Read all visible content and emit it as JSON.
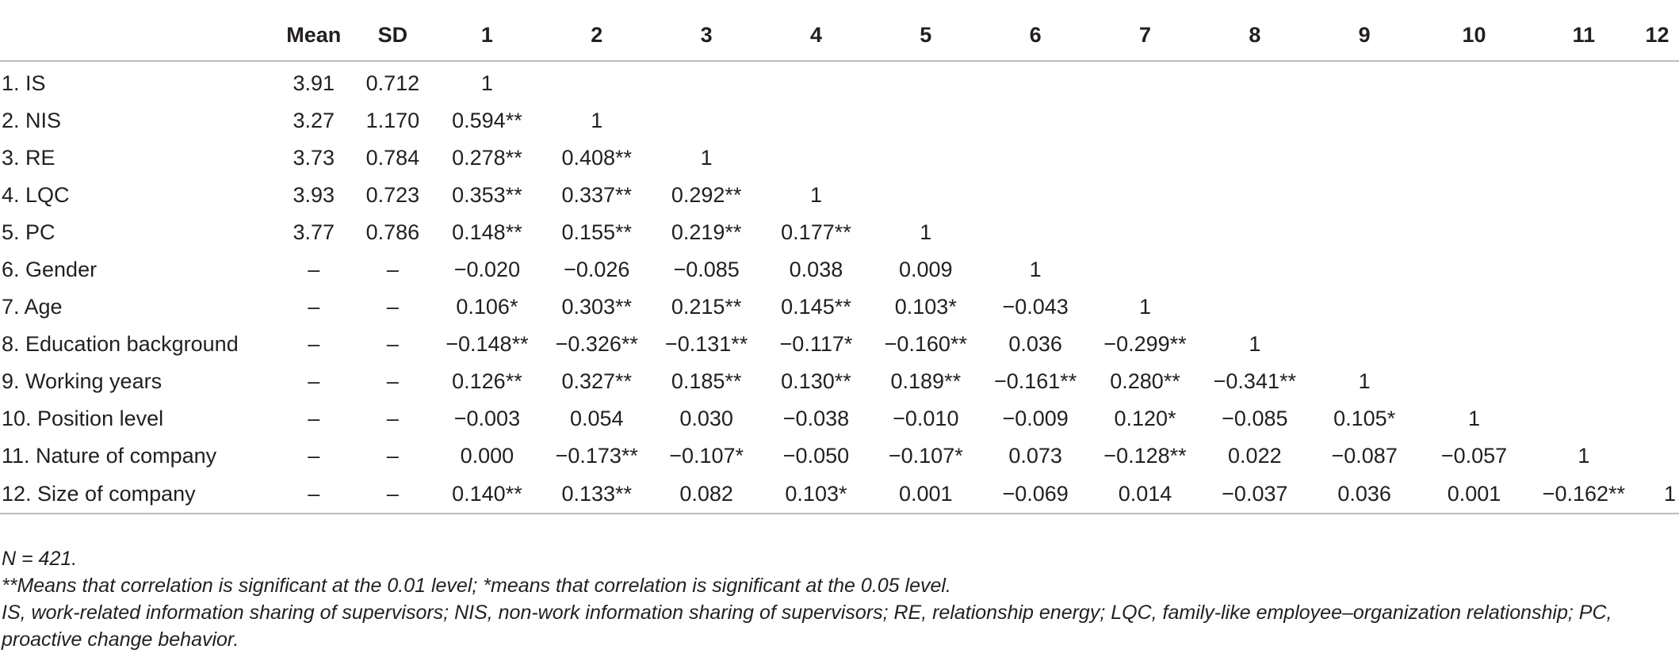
{
  "table": {
    "headers": [
      "",
      "Mean",
      "SD",
      "1",
      "2",
      "3",
      "4",
      "5",
      "6",
      "7",
      "8",
      "9",
      "10",
      "11",
      "12"
    ],
    "rows": [
      {
        "label": "1. IS",
        "mean": "3.91",
        "sd": "0.712",
        "values": [
          "1",
          "",
          "",
          "",
          "",
          "",
          "",
          "",
          "",
          "",
          "",
          ""
        ]
      },
      {
        "label": "2. NIS",
        "mean": "3.27",
        "sd": "1.170",
        "values": [
          "0.594**",
          "1",
          "",
          "",
          "",
          "",
          "",
          "",
          "",
          "",
          "",
          ""
        ]
      },
      {
        "label": "3. RE",
        "mean": "3.73",
        "sd": "0.784",
        "values": [
          "0.278**",
          "0.408**",
          "1",
          "",
          "",
          "",
          "",
          "",
          "",
          "",
          "",
          ""
        ]
      },
      {
        "label": "4. LQC",
        "mean": "3.93",
        "sd": "0.723",
        "values": [
          "0.353**",
          "0.337**",
          "0.292**",
          "1",
          "",
          "",
          "",
          "",
          "",
          "",
          "",
          ""
        ]
      },
      {
        "label": "5. PC",
        "mean": "3.77",
        "sd": "0.786",
        "values": [
          "0.148**",
          "0.155**",
          "0.219**",
          "0.177**",
          "1",
          "",
          "",
          "",
          "",
          "",
          "",
          ""
        ]
      },
      {
        "label": "6. Gender",
        "mean": "–",
        "sd": "–",
        "values": [
          "−0.020",
          "−0.026",
          "−0.085",
          "0.038",
          "0.009",
          "1",
          "",
          "",
          "",
          "",
          "",
          ""
        ]
      },
      {
        "label": "7. Age",
        "mean": "–",
        "sd": "–",
        "values": [
          "0.106*",
          "0.303**",
          "0.215**",
          "0.145**",
          "0.103*",
          "−0.043",
          "1",
          "",
          "",
          "",
          "",
          ""
        ]
      },
      {
        "label": "8. Education background",
        "mean": "–",
        "sd": "–",
        "values": [
          "−0.148**",
          "−0.326**",
          "−0.131**",
          "−0.117*",
          "−0.160**",
          "0.036",
          "−0.299**",
          "1",
          "",
          "",
          "",
          ""
        ]
      },
      {
        "label": "9. Working years",
        "mean": "–",
        "sd": "–",
        "values": [
          "0.126**",
          "0.327**",
          "0.185**",
          "0.130**",
          "0.189**",
          "−0.161**",
          "0.280**",
          "−0.341**",
          "1",
          "",
          "",
          ""
        ]
      },
      {
        "label": "10. Position level",
        "mean": "–",
        "sd": "–",
        "values": [
          "−0.003",
          "0.054",
          "0.030",
          "−0.038",
          "−0.010",
          "−0.009",
          "0.120*",
          "−0.085",
          "0.105*",
          "1",
          "",
          ""
        ]
      },
      {
        "label": "11. Nature of company",
        "mean": "–",
        "sd": "–",
        "values": [
          "0.000",
          "−0.173**",
          "−0.107*",
          "−0.050",
          "−0.107*",
          "0.073",
          "−0.128**",
          "0.022",
          "−0.087",
          "−0.057",
          "1",
          ""
        ]
      },
      {
        "label": "12. Size of company",
        "mean": "–",
        "sd": "–",
        "values": [
          "0.140**",
          "0.133**",
          "0.082",
          "0.103*",
          "0.001",
          "−0.069",
          "0.014",
          "−0.037",
          "0.036",
          "0.001",
          "−0.162**",
          "1"
        ]
      }
    ]
  },
  "notes": [
    "N = 421.",
    "**Means that correlation is significant at the 0.01 level; *means that correlation is significant at the 0.05 level.",
    "IS, work-related information sharing of supervisors; NIS, non-work information sharing of supervisors; RE, relationship energy; LQC, family-like employee–organization relationship; PC, proactive change behavior."
  ]
}
